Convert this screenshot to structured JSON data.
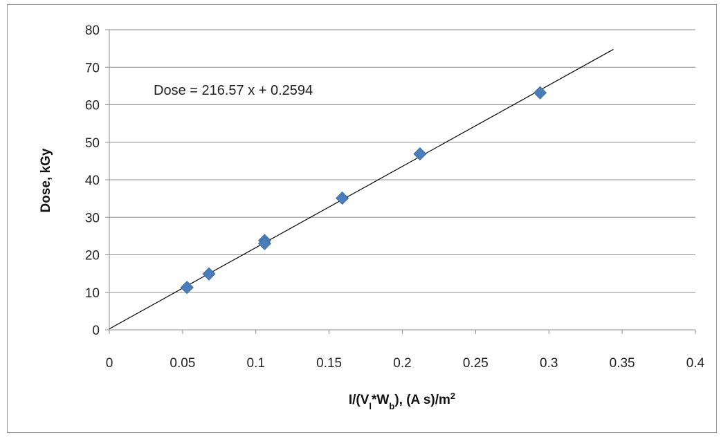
{
  "chart_data": {
    "type": "scatter",
    "title": "",
    "xlabel": {
      "base": "I/(V",
      "sub1": "l",
      "mid": "*W",
      "sub2": "b",
      "tail": "), (A s)/m",
      "sup": "2"
    },
    "ylabel": "Dose, kGy",
    "xlim": [
      0,
      0.4
    ],
    "ylim": [
      0,
      80
    ],
    "x_ticks": [
      "0",
      "0.05",
      "0.1",
      "0.15",
      "0.2",
      "0.25",
      "0.3",
      "0.35",
      "0.4"
    ],
    "y_ticks": [
      "0",
      "10",
      "20",
      "30",
      "40",
      "50",
      "60",
      "70",
      "80"
    ],
    "grid": "horizontal",
    "series": [
      {
        "marker": "diamond",
        "color": "#4a7ebb",
        "points": [
          {
            "x": 0.053,
            "y": 11.3
          },
          {
            "x": 0.068,
            "y": 14.9
          },
          {
            "x": 0.106,
            "y": 23.8
          },
          {
            "x": 0.106,
            "y": 23.0
          },
          {
            "x": 0.159,
            "y": 35.1
          },
          {
            "x": 0.212,
            "y": 46.9
          },
          {
            "x": 0.294,
            "y": 63.2
          }
        ]
      }
    ],
    "trendline": {
      "slope": 216.57,
      "intercept": 0.2594,
      "x_range": [
        0,
        0.344
      ],
      "color": "#000000",
      "equation_text": "Dose = 216.57 x + 0.2594"
    },
    "legend": "none"
  }
}
